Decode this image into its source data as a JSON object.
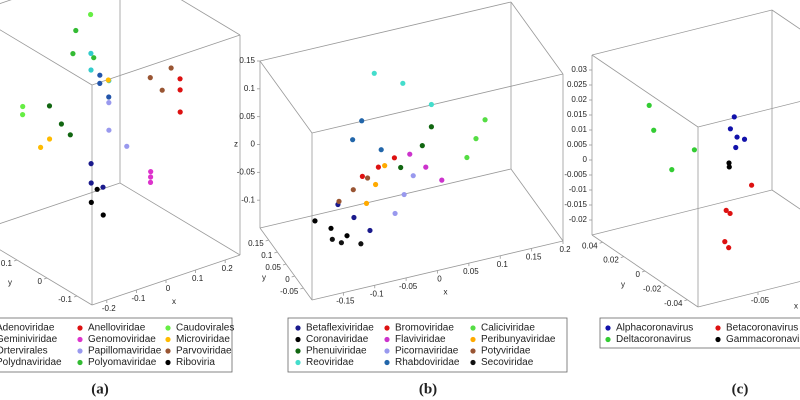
{
  "chart_data": [
    {
      "type": "scatter3d",
      "caption": "(a)",
      "xlabel": "x",
      "ylabel": "y",
      "xlim": [
        -0.25,
        0.25
      ],
      "ylim": [
        -0.15,
        0.25
      ],
      "zlim": [
        -0.2,
        0.2
      ],
      "xticks": [
        -0.2,
        -0.1,
        0,
        0.1,
        0.2
      ],
      "yticks": [
        -0.1,
        0,
        0.1
      ],
      "series": [
        {
          "name": "Adenoviridae",
          "color": "#1a1a8c",
          "x": [
            -0.05,
            -0.02,
            0.0
          ],
          "y": [
            0.05,
            0.08,
            0.06
          ],
          "z": [
            -0.08,
            -0.06,
            -0.1
          ]
        },
        {
          "name": "Geminiviridae",
          "color": "#116611",
          "x": [
            -0.1,
            -0.12,
            -0.08
          ],
          "y": [
            0.1,
            0.12,
            0.09
          ],
          "z": [
            0.02,
            0.05,
            0.0
          ]
        },
        {
          "name": "Ortervirales",
          "color": "#33cccc",
          "x": [
            0.0,
            0.02,
            0.04
          ],
          "y": [
            0.1,
            0.12,
            0.08
          ],
          "z": [
            0.1,
            0.12,
            0.08
          ]
        },
        {
          "name": "Polydnaviridae",
          "color": "#2255aa",
          "x": [
            0.05,
            0.06,
            0.04
          ],
          "y": [
            0.12,
            0.1,
            0.11
          ],
          "z": [
            0.06,
            0.04,
            0.08
          ]
        },
        {
          "name": "Anelloviridae",
          "color": "#dd1111",
          "x": [
            0.22,
            0.2,
            0.24
          ],
          "y": [
            0.02,
            0.0,
            0.04
          ],
          "z": [
            0.05,
            0.02,
            0.06
          ]
        },
        {
          "name": "Genomoviridae",
          "color": "#dd33cc",
          "x": [
            0.1,
            0.12,
            0.08
          ],
          "y": [
            0.0,
            0.02,
            -0.02
          ],
          "z": [
            -0.08,
            -0.1,
            -0.06
          ]
        },
        {
          "name": "Papillomaviridae",
          "color": "#9999ee",
          "x": [
            0.02,
            0.04,
            0.06
          ],
          "y": [
            0.06,
            0.08,
            0.04
          ],
          "z": [
            0.0,
            0.04,
            -0.03
          ]
        },
        {
          "name": "Polyomaviridae",
          "color": "#33bb33",
          "x": [
            0.02,
            0.05,
            0.07
          ],
          "y": [
            0.18,
            0.2,
            0.16
          ],
          "z": [
            0.1,
            0.13,
            0.09
          ]
        },
        {
          "name": "Caudovirales",
          "color": "#66ee44",
          "x": [
            -0.18,
            -0.15,
            0.1
          ],
          "y": [
            0.15,
            0.18,
            0.2
          ],
          "z": [
            0.05,
            0.02,
            0.15
          ]
        },
        {
          "name": "Microviridae",
          "color": "#ffbb00",
          "x": [
            -0.15,
            -0.14,
            0.16
          ],
          "y": [
            0.12,
            0.1,
            0.2
          ],
          "z": [
            -0.02,
            0.0,
            0.02
          ]
        },
        {
          "name": "Parvoviridae",
          "color": "#995533",
          "x": [
            0.2,
            0.18,
            0.22
          ],
          "y": [
            0.06,
            0.08,
            0.05
          ],
          "z": [
            0.04,
            0.06,
            0.08
          ]
        },
        {
          "name": "Riboviria",
          "color": "#000000",
          "x": [
            -0.08,
            -0.06,
            -0.04
          ],
          "y": [
            0.02,
            0.0,
            0.04
          ],
          "z": [
            -0.1,
            -0.12,
            -0.09
          ]
        }
      ]
    },
    {
      "type": "scatter3d",
      "caption": "(b)",
      "xlabel": "x",
      "ylabel": "y",
      "zlabel": "z",
      "xlim": [
        -0.2,
        0.2
      ],
      "ylim": [
        -0.1,
        0.2
      ],
      "zlim": [
        -0.15,
        0.15
      ],
      "xticks": [
        -0.15,
        -0.1,
        -0.05,
        0,
        0.05,
        0.1,
        0.15,
        0.2
      ],
      "yticks": [
        -0.05,
        0,
        0.05,
        0.1,
        0.15
      ],
      "zticks": [
        -0.1,
        -0.05,
        0,
        0.05,
        0.1,
        0.15
      ],
      "series": [
        {
          "name": "Betaflexiviridae",
          "color": "#1a1a8c",
          "x": [
            -0.1,
            -0.08,
            -0.12
          ],
          "y": [
            0.02,
            0.0,
            0.04
          ],
          "z": [
            -0.08,
            -0.1,
            -0.06
          ]
        },
        {
          "name": "Coronaviridae",
          "color": "#000000",
          "x": [
            -0.12,
            -0.1,
            -0.14
          ],
          "y": [
            0.08,
            0.06,
            0.1
          ],
          "z": [
            -0.12,
            -0.13,
            -0.11
          ]
        },
        {
          "name": "Phenuiviridae",
          "color": "#116611",
          "x": [
            0.02,
            0.04,
            -0.02
          ],
          "y": [
            0.06,
            0.08,
            0.04
          ],
          "z": [
            0.0,
            0.02,
            -0.02
          ]
        },
        {
          "name": "Reoviridae",
          "color": "#44ddcc",
          "x": [
            0.0,
            -0.04,
            0.04
          ],
          "y": [
            0.1,
            0.12,
            0.08
          ],
          "z": [
            0.1,
            0.12,
            0.06
          ]
        },
        {
          "name": "Bromoviridae",
          "color": "#dd1111",
          "x": [
            -0.05,
            -0.03,
            -0.07
          ],
          "y": [
            0.06,
            0.04,
            0.08
          ],
          "z": [
            -0.02,
            0.0,
            -0.04
          ]
        },
        {
          "name": "Flaviviridae",
          "color": "#cc33cc",
          "x": [
            0.02,
            0.0,
            0.04
          ],
          "y": [
            0.04,
            0.06,
            0.02
          ],
          "z": [
            -0.03,
            -0.01,
            -0.05
          ]
        },
        {
          "name": "Picornaviridae",
          "color": "#9999ee",
          "x": [
            -0.02,
            0.0,
            -0.04
          ],
          "y": [
            0.02,
            0.04,
            0.0
          ],
          "z": [
            -0.06,
            -0.04,
            -0.08
          ]
        },
        {
          "name": "Rhabdoviridae",
          "color": "#2266aa",
          "x": [
            -0.08,
            -0.06,
            -0.04
          ],
          "y": [
            0.1,
            0.12,
            0.08
          ],
          "z": [
            0.02,
            0.04,
            0.0
          ]
        },
        {
          "name": "Caliciviridae",
          "color": "#55dd44",
          "x": [
            0.1,
            0.12,
            0.08
          ],
          "y": [
            0.04,
            0.06,
            0.02
          ],
          "z": [
            0.0,
            0.02,
            -0.02
          ]
        },
        {
          "name": "Peribunyaviridae",
          "color": "#ffaa00",
          "x": [
            -0.06,
            -0.04,
            -0.08
          ],
          "y": [
            0.04,
            0.06,
            0.02
          ],
          "z": [
            -0.04,
            -0.02,
            -0.06
          ]
        },
        {
          "name": "Potyviridae",
          "color": "#995533",
          "x": [
            -0.09,
            -0.07,
            -0.11
          ],
          "y": [
            0.06,
            0.05,
            0.07
          ],
          "z": [
            -0.05,
            -0.03,
            -0.07
          ]
        },
        {
          "name": "Secoviridae",
          "color": "#111111",
          "x": [
            -0.14,
            -0.12,
            -0.1
          ],
          "y": [
            0.0,
            0.02,
            -0.02
          ],
          "z": [
            -0.1,
            -0.12,
            -0.11
          ]
        }
      ]
    },
    {
      "type": "scatter3d",
      "caption": "(c)",
      "xlabel": "x",
      "ylabel": "y",
      "xlim": [
        -0.1,
        0.05
      ],
      "ylim": [
        -0.05,
        0.05
      ],
      "zlim": [
        -0.025,
        0.035
      ],
      "xticks": [
        -0.05
      ],
      "yticks": [
        -0.04,
        -0.02,
        0,
        0.02,
        0.04
      ],
      "zticks": [
        -0.02,
        -0.015,
        -0.01,
        -0.005,
        0,
        0.005,
        0.01,
        0.015,
        0.02,
        0.025,
        0.03
      ],
      "series": [
        {
          "name": "Alphacoronavirus",
          "color": "#1111aa",
          "x": [
            -0.02,
            -0.015,
            -0.01,
            -0.018,
            -0.012
          ],
          "y": [
            0.01,
            0.012,
            0.008,
            0.006,
            0.014
          ],
          "z": [
            0.012,
            0.015,
            0.008,
            0.01,
            0.004
          ]
        },
        {
          "name": "Deltacoronavirus",
          "color": "#33cc33",
          "x": [
            -0.07,
            -0.068,
            -0.06,
            -0.05
          ],
          "y": [
            0.03,
            0.028,
            0.02,
            0.01
          ],
          "z": [
            0.02,
            0.012,
            0.0,
            0.008
          ]
        },
        {
          "name": "Betacoronavirus",
          "color": "#dd1111",
          "x": [
            -0.05,
            -0.045,
            -0.06,
            -0.055,
            -0.02
          ],
          "y": [
            -0.02,
            -0.018,
            -0.03,
            -0.028,
            -0.01
          ],
          "z": [
            -0.005,
            -0.007,
            -0.012,
            -0.015,
            -0.002
          ]
        },
        {
          "name": "Gammacoronavirus",
          "color": "#000000",
          "x": [
            -0.03,
            -0.028
          ],
          "y": [
            0.0,
            0.002
          ],
          "z": [
            0.004,
            0.002
          ]
        }
      ]
    }
  ]
}
